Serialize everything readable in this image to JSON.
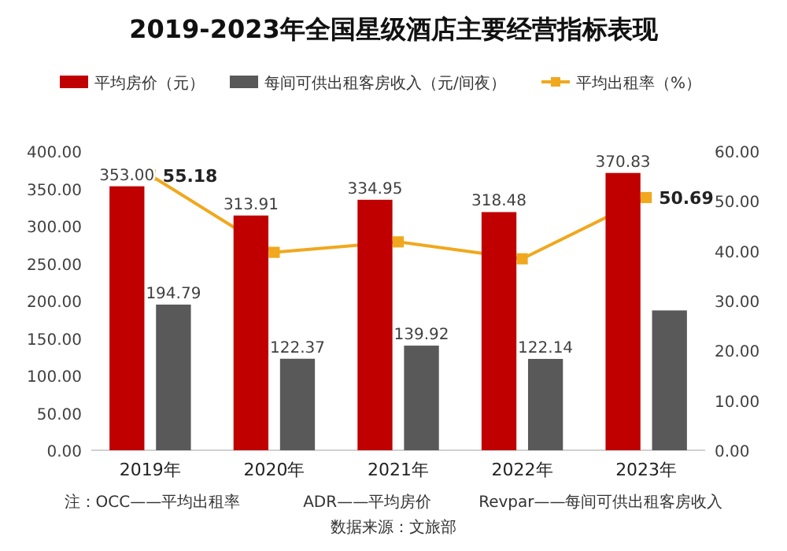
{
  "chart_data": {
    "type": "bar",
    "title": "2019-2023年全国星级酒店主要经营指标表现",
    "categories": [
      "2019年",
      "2020年",
      "2021年",
      "2022年",
      "2023年"
    ],
    "series": [
      {
        "name": "平均房价（元）",
        "color": "#c00000",
        "values": [
          353.0,
          313.91,
          334.95,
          318.48,
          370.83
        ],
        "value_labels": [
          "353.00",
          "313.91",
          "334.95",
          "318.48",
          "370.83"
        ]
      },
      {
        "name": "每间可供出租客房收入（元/间夜）",
        "color": "#595959",
        "values": [
          194.79,
          122.37,
          139.92,
          122.14,
          187
        ],
        "value_labels": [
          "194.79",
          "122.37",
          "139.92",
          "122.14",
          null
        ]
      },
      {
        "name": "平均出租率（%）",
        "type": "line",
        "axis": "y2",
        "color": "#f0a81e",
        "marker": "square",
        "values": [
          55.18,
          39.7,
          41.8,
          38.4,
          50.69
        ],
        "value_labels": [
          "55.18",
          null,
          null,
          null,
          "50.69"
        ]
      }
    ],
    "ylim": [
      0,
      400
    ],
    "yticks": [
      {
        "value": 0,
        "label": "0.00"
      },
      {
        "value": 50,
        "label": "50.00"
      },
      {
        "value": 100,
        "label": "100.00"
      },
      {
        "value": 150,
        "label": "150.00"
      },
      {
        "value": 200,
        "label": "200.00"
      },
      {
        "value": 250,
        "label": "250.00"
      },
      {
        "value": 300,
        "label": "300.00"
      },
      {
        "value": 350,
        "label": "350.00"
      },
      {
        "value": 400,
        "label": "400.00"
      }
    ],
    "y2lim": [
      0,
      60
    ],
    "y2ticks": [
      {
        "value": 0,
        "label": "0.00"
      },
      {
        "value": 10,
        "label": "10.00"
      },
      {
        "value": 20,
        "label": "20.00"
      },
      {
        "value": 30,
        "label": "30.00"
      },
      {
        "value": 40,
        "label": "40.00"
      },
      {
        "value": 50,
        "label": "50.00"
      },
      {
        "value": 60,
        "label": "60.00"
      }
    ],
    "legend": "top",
    "grid": false,
    "annotations": [
      "注：OCC——平均出租率　　　　ADR——平均房价　　　Revpar——每间可供出租客房收入",
      "数据来源：文旅部"
    ]
  }
}
